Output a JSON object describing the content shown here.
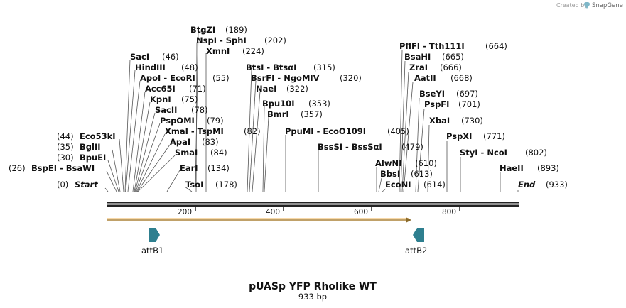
{
  "credit": {
    "text": "Created by",
    "brand": "SnapGene"
  },
  "map": {
    "title": "pUASp YFP Rholike WT",
    "length_label": "933 bp",
    "length_bp": 933,
    "ticks": [
      "200",
      "400",
      "600",
      "800"
    ],
    "start_label": "Start",
    "start_pos": "(0)",
    "end_label": "End",
    "end_pos": "(933)"
  },
  "enzymes": [
    {
      "name": "BtgZI",
      "pos": "(189)"
    },
    {
      "name": "NspI  - SphI",
      "pos": "(202)"
    },
    {
      "name": "XmnI",
      "pos": "(224)"
    },
    {
      "name": "SacI",
      "pos": "(46)"
    },
    {
      "name": "HindIII",
      "pos": "(48)"
    },
    {
      "name": "ApoI  - EcoRI",
      "pos": "(55)"
    },
    {
      "name": "Acc65I",
      "pos": "(71)"
    },
    {
      "name": "KpnI",
      "pos": "(75)"
    },
    {
      "name": "SacII",
      "pos": "(78)"
    },
    {
      "name": "PspOMI",
      "pos": "(79)"
    },
    {
      "name": "XmaI  - TspMI",
      "pos": "(82)"
    },
    {
      "name": "ApaI",
      "pos": "(83)"
    },
    {
      "name": "SmaI",
      "pos": "(84)"
    },
    {
      "name": "EarI",
      "pos": "(134)"
    },
    {
      "name": "TsoI",
      "pos": "(178)"
    },
    {
      "name": "Eco53kI",
      "pos": "(44)"
    },
    {
      "name": "BglII",
      "pos": "(35)"
    },
    {
      "name": "BpuEI",
      "pos": "(30)"
    },
    {
      "name": "BspEI  - BsaWI",
      "pos": "(26)"
    },
    {
      "name": "BtsI  - BtsαI",
      "pos": "(315)"
    },
    {
      "name": "BsrFI  - NgoMIV",
      "pos": "(320)"
    },
    {
      "name": "NaeI",
      "pos": "(322)"
    },
    {
      "name": "Bpu10I",
      "pos": "(353)"
    },
    {
      "name": "BmrI",
      "pos": "(357)"
    },
    {
      "name": "PpuMI  - EcoO109I",
      "pos": "(405)"
    },
    {
      "name": "BssSI  - BssSαI",
      "pos": "(479)"
    },
    {
      "name": "AlwNI",
      "pos": "(610)"
    },
    {
      "name": "BbsI",
      "pos": "(613)"
    },
    {
      "name": "EcoNI",
      "pos": "(614)"
    },
    {
      "name": "PflFI  - Tth111I",
      "pos": "(664)"
    },
    {
      "name": "BsaHI",
      "pos": "(665)"
    },
    {
      "name": "ZraI",
      "pos": "(666)"
    },
    {
      "name": "AatII",
      "pos": "(668)"
    },
    {
      "name": "BseYI",
      "pos": "(697)"
    },
    {
      "name": "PspFI",
      "pos": "(701)"
    },
    {
      "name": "XbaI",
      "pos": "(730)"
    },
    {
      "name": "PspXI",
      "pos": "(771)"
    },
    {
      "name": "StyI  - NcoI",
      "pos": "(802)"
    },
    {
      "name": "HaeII",
      "pos": "(893)"
    }
  ],
  "features": [
    {
      "name": "attB1",
      "color": "#2e7f8f"
    },
    {
      "name": "attB2",
      "color": "#2e7f8f"
    }
  ],
  "orf": {
    "color": "#f0b860",
    "arrow_color": "#8a6a2a"
  }
}
